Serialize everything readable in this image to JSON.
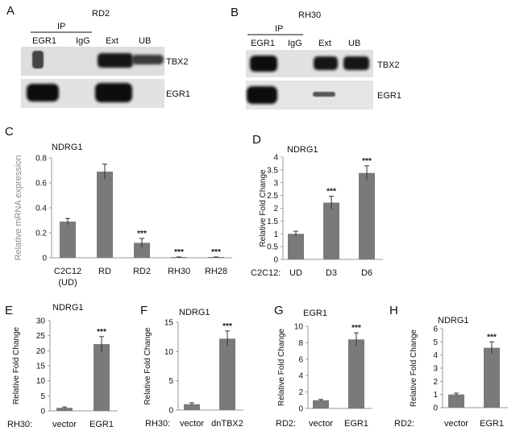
{
  "panels_blot": [
    {
      "letter": "A",
      "title": "RD2",
      "ip_label": "IP",
      "lanes": [
        "EGR1",
        "IgG",
        "Ext",
        "UB"
      ],
      "rows": [
        "TBX2",
        "EGR1"
      ]
    },
    {
      "letter": "B",
      "title": "RH30",
      "ip_label": "IP",
      "lanes": [
        "EGR1",
        "IgG",
        "Ext",
        "UB"
      ],
      "rows": [
        "TBX2",
        "EGR1"
      ]
    }
  ],
  "chart_data": [
    {
      "panel": "C",
      "type": "bar",
      "title": "NDRG1",
      "ylabel": "Relative  mRNA expression",
      "xlabel": "",
      "categories": [
        "C2C12\n(UD)",
        "RD",
        "RD2",
        "RH30",
        "RH28"
      ],
      "values": [
        0.29,
        0.69,
        0.12,
        0.003,
        0.003
      ],
      "errors": [
        0.025,
        0.06,
        0.035,
        0.004,
        0.004
      ],
      "significance": [
        "",
        "",
        "***",
        "***",
        "***"
      ],
      "ylim": [
        0,
        0.8
      ],
      "yticks": [
        "0",
        "0.2",
        "0.4",
        "0.6",
        "0.8"
      ],
      "grid": false
    },
    {
      "panel": "D",
      "type": "bar",
      "title": "NDRG1",
      "ylabel": "Relative Fold Change",
      "xlabel": "C2C12:",
      "categories": [
        "UD",
        "D3",
        "D6"
      ],
      "values": [
        1.0,
        2.22,
        3.38
      ],
      "errors": [
        0.1,
        0.25,
        0.28
      ],
      "significance": [
        "",
        "***",
        "***"
      ],
      "ylim": [
        0,
        4
      ],
      "yticks": [
        "0",
        "0.5",
        "1",
        "1.5",
        "2",
        "2.5",
        "3",
        "3.5",
        "4"
      ],
      "grid": false
    },
    {
      "panel": "E",
      "type": "bar",
      "title": "NDRG1",
      "ylabel": "Relative Fold Change",
      "xlabel": "RH30:",
      "categories": [
        "vector",
        "EGR1"
      ],
      "values": [
        1.0,
        22.2
      ],
      "errors": [
        0.3,
        2.5
      ],
      "significance": [
        "",
        "***"
      ],
      "ylim": [
        0,
        30
      ],
      "yticks": [
        "0",
        "5",
        "10",
        "15",
        "20",
        "25",
        "30"
      ],
      "grid": false
    },
    {
      "panel": "F",
      "type": "bar",
      "title": "NDRG1",
      "ylabel": "Relative Fold Change",
      "xlabel": "RH30:",
      "categories": [
        "vector",
        "dnTBX2"
      ],
      "values": [
        1.0,
        12.2
      ],
      "errors": [
        0.25,
        1.3
      ],
      "significance": [
        "",
        "***"
      ],
      "ylim": [
        0,
        15
      ],
      "yticks": [
        "0",
        "5",
        "10",
        "15"
      ],
      "grid": false
    },
    {
      "panel": "G",
      "type": "bar",
      "title": "EGR1",
      "ylabel": "Relative Fold Change",
      "xlabel": "RD2:",
      "categories": [
        "vector",
        "EGR1"
      ],
      "values": [
        1.0,
        8.4
      ],
      "errors": [
        0.1,
        0.8
      ],
      "significance": [
        "",
        "***"
      ],
      "ylim": [
        0,
        10
      ],
      "yticks": [
        "0",
        "2",
        "4",
        "6",
        "8",
        "10"
      ],
      "grid": false
    },
    {
      "panel": "H",
      "type": "bar",
      "title": "NDRG1",
      "ylabel": "Relative Fold Change",
      "xlabel": "RD2:",
      "categories": [
        "vector",
        "EGR1"
      ],
      "values": [
        1.0,
        4.55
      ],
      "errors": [
        0.1,
        0.45
      ],
      "significance": [
        "",
        "***"
      ],
      "ylim": [
        0,
        6
      ],
      "yticks": [
        "0",
        "1",
        "2",
        "3",
        "4",
        "5",
        "6"
      ],
      "grid": false
    }
  ],
  "colors": {
    "bar": "#7a7a7a",
    "axis": "#9a9a9a",
    "text": "#111111",
    "ylabel_c": "#8c8c8c"
  }
}
